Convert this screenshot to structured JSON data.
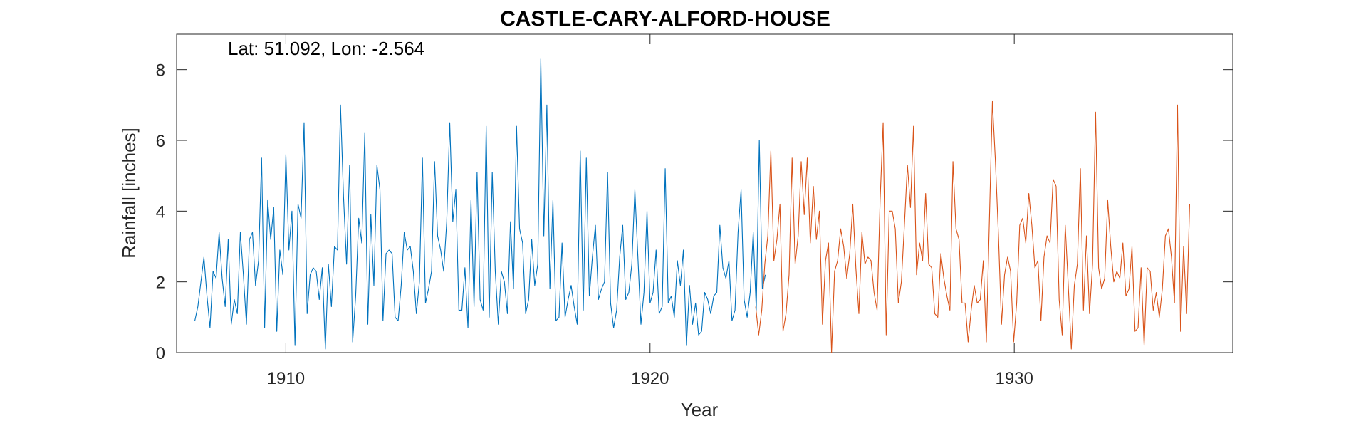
{
  "chart_data": {
    "type": "line",
    "title": "CASTLE-CARY-ALFORD-HOUSE",
    "annotation": "Lat: 51.092, Lon: -2.564",
    "xlabel": "Year",
    "ylabel": "Rainfall [inches]",
    "xlim": [
      1907,
      1936
    ],
    "ylim": [
      0,
      9
    ],
    "xticks": [
      1910,
      1920,
      1930
    ],
    "yticks": [
      0,
      2,
      4,
      6,
      8
    ],
    "grid": false,
    "box": true,
    "series": [
      {
        "color": "#0072BD",
        "x_start": 1907.5,
        "step": 0.08333,
        "values": [
          0.9,
          1.3,
          2.0,
          2.7,
          1.6,
          0.7,
          2.3,
          2.1,
          3.4,
          2.1,
          1.3,
          3.2,
          0.8,
          1.5,
          1.1,
          3.4,
          2.2,
          0.8,
          3.2,
          3.4,
          1.9,
          2.6,
          5.5,
          0.7,
          4.3,
          3.2,
          4.1,
          0.6,
          2.9,
          2.2,
          5.6,
          2.9,
          4.0,
          0.2,
          4.2,
          3.8,
          6.5,
          1.1,
          2.2,
          2.4,
          2.3,
          1.5,
          2.4,
          0.1,
          2.5,
          1.3,
          3.0,
          2.9,
          7.0,
          4.4,
          2.5,
          5.3,
          0.3,
          1.6,
          3.8,
          3.1,
          6.2,
          0.8,
          3.9,
          1.9,
          5.3,
          4.6,
          0.9,
          2.8,
          2.9,
          2.8,
          1.0,
          0.9,
          1.9,
          3.4,
          2.9,
          3.0,
          2.3,
          1.1,
          2.0,
          5.5,
          1.4,
          1.8,
          2.3,
          5.4,
          3.3,
          2.9,
          2.3,
          3.7,
          6.5,
          3.7,
          4.6,
          1.2,
          1.2,
          2.4,
          0.7,
          4.3,
          1.3,
          5.1,
          1.5,
          1.2,
          6.4,
          1.0,
          5.1,
          2.3,
          0.8,
          2.3,
          2.0,
          1.1,
          3.7,
          1.8,
          6.4,
          3.5,
          3.1,
          1.1,
          1.5,
          3.2,
          1.9,
          2.5,
          8.3,
          3.3,
          7.0,
          1.8,
          4.3,
          0.9,
          1.0,
          3.1,
          1.0,
          1.5,
          1.9,
          1.3,
          0.8,
          5.7,
          1.2,
          5.5,
          1.6,
          2.7,
          3.6,
          1.5,
          1.8,
          2.0,
          5.1,
          1.4,
          0.7,
          1.2,
          2.7,
          3.6,
          1.5,
          1.7,
          2.5,
          4.6,
          2.7,
          0.8,
          1.7,
          4.0,
          1.4,
          1.7,
          2.9,
          1.1,
          1.3,
          5.2,
          1.4,
          1.6,
          1.0,
          2.6,
          1.9,
          2.9,
          0.2,
          1.9,
          0.8,
          1.4,
          0.5,
          0.6,
          1.7,
          1.5,
          1.1,
          1.6,
          1.7,
          3.6,
          2.4,
          2.1,
          2.6,
          0.9,
          1.2,
          3.4,
          4.6,
          1.5,
          1.0,
          1.7,
          3.4,
          1.2,
          6.0,
          1.8,
          2.2
        ]
      },
      {
        "color": "#D95319",
        "x_start": 1922.9,
        "step": 0.08333,
        "values": [
          1.3,
          0.5,
          1.2,
          2.5,
          3.3,
          5.7,
          2.6,
          3.2,
          4.2,
          0.6,
          1.1,
          2.2,
          5.5,
          2.5,
          3.3,
          5.4,
          3.9,
          5.5,
          3.1,
          4.7,
          3.2,
          4.0,
          0.8,
          2.6,
          3.1,
          0.0,
          2.3,
          2.6,
          3.5,
          3.0,
          2.1,
          2.8,
          4.2,
          2.4,
          1.1,
          3.4,
          2.5,
          2.7,
          2.6,
          1.7,
          1.2,
          4.3,
          6.5,
          0.5,
          4.0,
          4.0,
          3.5,
          1.4,
          2.0,
          3.6,
          5.3,
          4.1,
          6.4,
          2.2,
          3.1,
          2.6,
          4.5,
          2.5,
          2.4,
          1.1,
          1.0,
          2.8,
          2.1,
          1.6,
          1.2,
          5.4,
          3.5,
          3.2,
          1.4,
          1.4,
          0.3,
          1.2,
          1.9,
          1.4,
          1.5,
          2.6,
          0.3,
          3.7,
          7.1,
          5.4,
          3.3,
          0.8,
          2.2,
          2.7,
          2.3,
          0.3,
          1.4,
          3.6,
          3.8,
          3.1,
          4.5,
          3.6,
          2.4,
          2.6,
          0.9,
          2.7,
          3.3,
          3.1,
          4.9,
          4.7,
          1.5,
          0.5,
          3.6,
          1.9,
          0.1,
          1.9,
          2.5,
          5.2,
          1.2,
          3.3,
          1.1,
          2.5,
          6.8,
          2.4,
          1.8,
          2.1,
          4.3,
          3.0,
          2.0,
          2.3,
          2.1,
          3.1,
          1.6,
          1.8,
          3.0,
          0.6,
          0.7,
          2.4,
          0.2,
          2.4,
          2.3,
          1.2,
          1.7,
          1.0,
          1.8,
          3.3,
          3.5,
          2.7,
          1.4,
          7.0,
          0.6,
          3.0,
          1.1,
          4.2
        ]
      }
    ]
  }
}
